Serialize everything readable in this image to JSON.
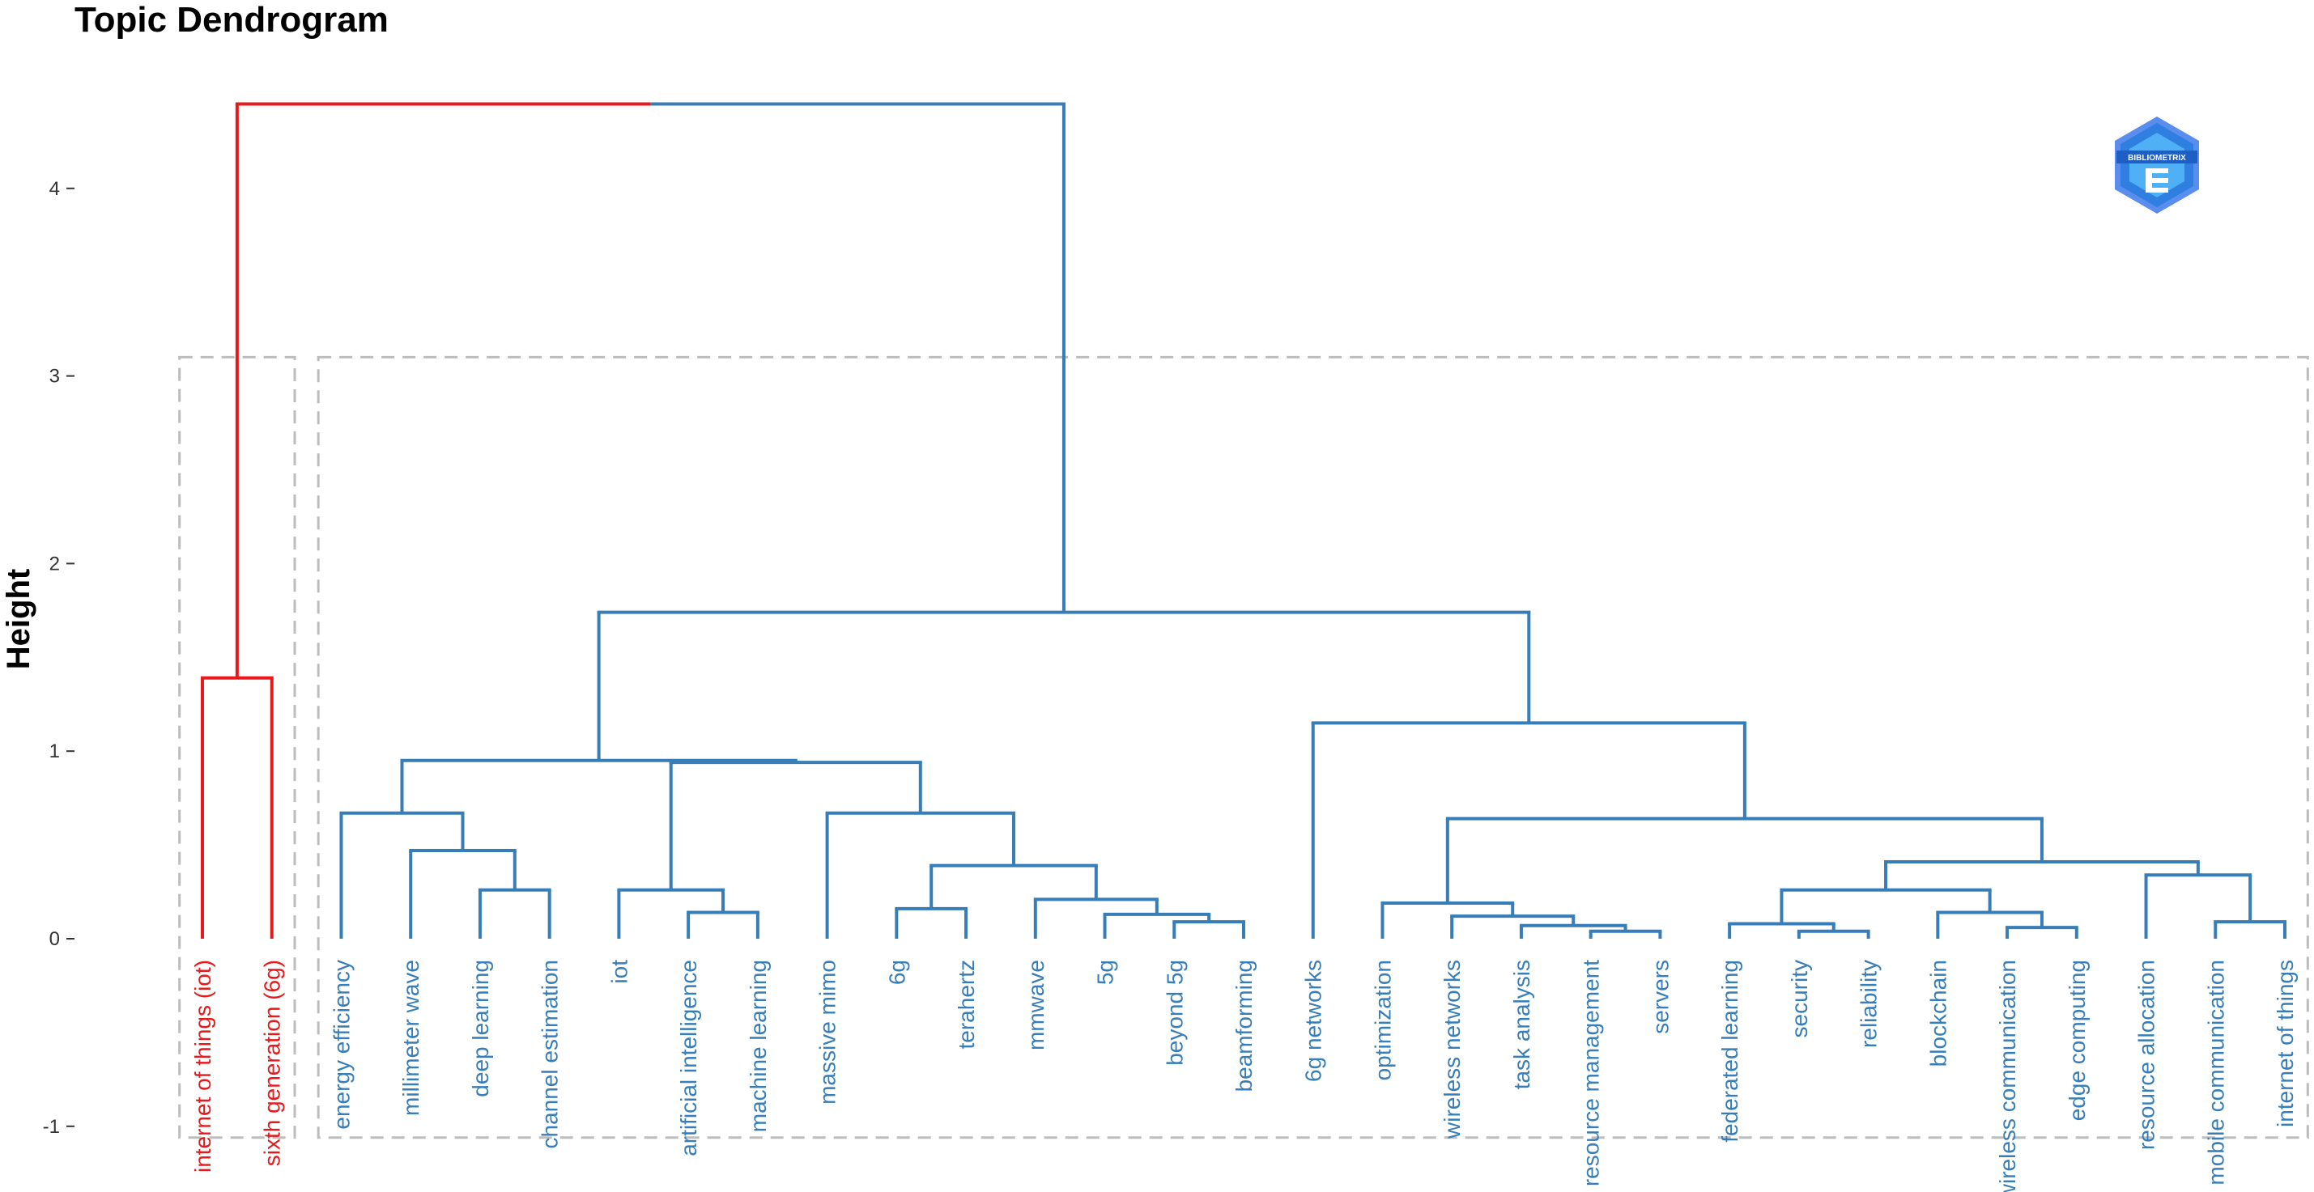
{
  "chart_data": {
    "type": "dendrogram",
    "title": "Topic Dendrogram",
    "ylabel": "Height",
    "xlabel": "",
    "ylim": [
      -1,
      4.5
    ],
    "yticks": [
      -1,
      0,
      1,
      2,
      3,
      4
    ],
    "leaves": [
      {
        "label": "internet of things (iot)",
        "cluster": 1
      },
      {
        "label": "sixth generation (6g)",
        "cluster": 1
      },
      {
        "label": "energy efficiency",
        "cluster": 2
      },
      {
        "label": "millimeter wave",
        "cluster": 2
      },
      {
        "label": "deep learning",
        "cluster": 2
      },
      {
        "label": "channel estimation",
        "cluster": 2
      },
      {
        "label": "iot",
        "cluster": 2
      },
      {
        "label": "artificial intelligence",
        "cluster": 2
      },
      {
        "label": "machine learning",
        "cluster": 2
      },
      {
        "label": "massive mimo",
        "cluster": 2
      },
      {
        "label": "6g",
        "cluster": 2
      },
      {
        "label": "terahertz",
        "cluster": 2
      },
      {
        "label": "mmwave",
        "cluster": 2
      },
      {
        "label": "5g",
        "cluster": 2
      },
      {
        "label": "beyond 5g",
        "cluster": 2
      },
      {
        "label": "beamforming",
        "cluster": 2
      },
      {
        "label": "6g networks",
        "cluster": 2
      },
      {
        "label": "optimization",
        "cluster": 2
      },
      {
        "label": "wireless networks",
        "cluster": 2
      },
      {
        "label": "task analysis",
        "cluster": 2
      },
      {
        "label": "resource management",
        "cluster": 2
      },
      {
        "label": "servers",
        "cluster": 2
      },
      {
        "label": "federated learning",
        "cluster": 2
      },
      {
        "label": "security",
        "cluster": 2
      },
      {
        "label": "reliability",
        "cluster": 2
      },
      {
        "label": "blockchain",
        "cluster": 2
      },
      {
        "label": "wireless communication",
        "cluster": 2
      },
      {
        "label": "edge computing",
        "cluster": 2
      },
      {
        "label": "resource allocation",
        "cluster": 2
      },
      {
        "label": "mobile communication",
        "cluster": 2
      },
      {
        "label": "internet of things",
        "cluster": 2
      }
    ],
    "merges": [
      {
        "id": "A",
        "left": 0,
        "right": 1,
        "height": 1.39
      },
      {
        "id": "B",
        "left": 4,
        "right": 5,
        "height": 0.26
      },
      {
        "id": "C",
        "left": 3,
        "right": "B",
        "height": 0.47
      },
      {
        "id": "D",
        "left": 2,
        "right": "C",
        "height": 0.67
      },
      {
        "id": "E",
        "left": 7,
        "right": 8,
        "height": 0.14
      },
      {
        "id": "F",
        "left": 6,
        "right": "E",
        "height": 0.26
      },
      {
        "id": "G",
        "left": 10,
        "right": 11,
        "height": 0.16
      },
      {
        "id": "H",
        "left": 14,
        "right": 15,
        "height": 0.09
      },
      {
        "id": "I",
        "left": 13,
        "right": "H",
        "height": 0.13
      },
      {
        "id": "J",
        "left": 12,
        "right": "I",
        "height": 0.21
      },
      {
        "id": "K",
        "left": "G",
        "right": "J",
        "height": 0.39
      },
      {
        "id": "L",
        "left": 9,
        "right": "K",
        "height": 0.67
      },
      {
        "id": "M",
        "left": "F",
        "right": "L",
        "height": 0.94
      },
      {
        "id": "N",
        "left": "D",
        "right": "M",
        "height": 0.95
      },
      {
        "id": "O",
        "left": 20,
        "right": 21,
        "height": 0.04
      },
      {
        "id": "P",
        "left": 19,
        "right": "O",
        "height": 0.07
      },
      {
        "id": "Q",
        "left": 18,
        "right": "P",
        "height": 0.12
      },
      {
        "id": "R",
        "left": 17,
        "right": "Q",
        "height": 0.19
      },
      {
        "id": "S",
        "left": 23,
        "right": 24,
        "height": 0.04
      },
      {
        "id": "T",
        "left": 22,
        "right": "S",
        "height": 0.08
      },
      {
        "id": "U",
        "left": 26,
        "right": 27,
        "height": 0.06
      },
      {
        "id": "V",
        "left": 25,
        "right": "U",
        "height": 0.14
      },
      {
        "id": "W",
        "left": "T",
        "right": "V",
        "height": 0.26
      },
      {
        "id": "X",
        "left": 29,
        "right": 30,
        "height": 0.09
      },
      {
        "id": "Y",
        "left": 28,
        "right": "X",
        "height": 0.34
      },
      {
        "id": "Z",
        "left": "W",
        "right": "Y",
        "height": 0.41
      },
      {
        "id": "AA",
        "left": "R",
        "right": "Z",
        "height": 0.64
      },
      {
        "id": "AB",
        "left": 16,
        "right": "AA",
        "height": 1.15
      },
      {
        "id": "AC",
        "left": "N",
        "right": "AB",
        "height": 1.74
      },
      {
        "id": "ROOT",
        "left": "A",
        "right": "AC",
        "height": 4.45
      }
    ],
    "cluster_colors": {
      "1": "#e41a1c",
      "2": "#377eb8"
    },
    "clusters": 2,
    "rect_color": "#bdbdbd"
  },
  "logo": {
    "text": "BIBLIOMETRIX",
    "color": "#2f7fe0"
  }
}
